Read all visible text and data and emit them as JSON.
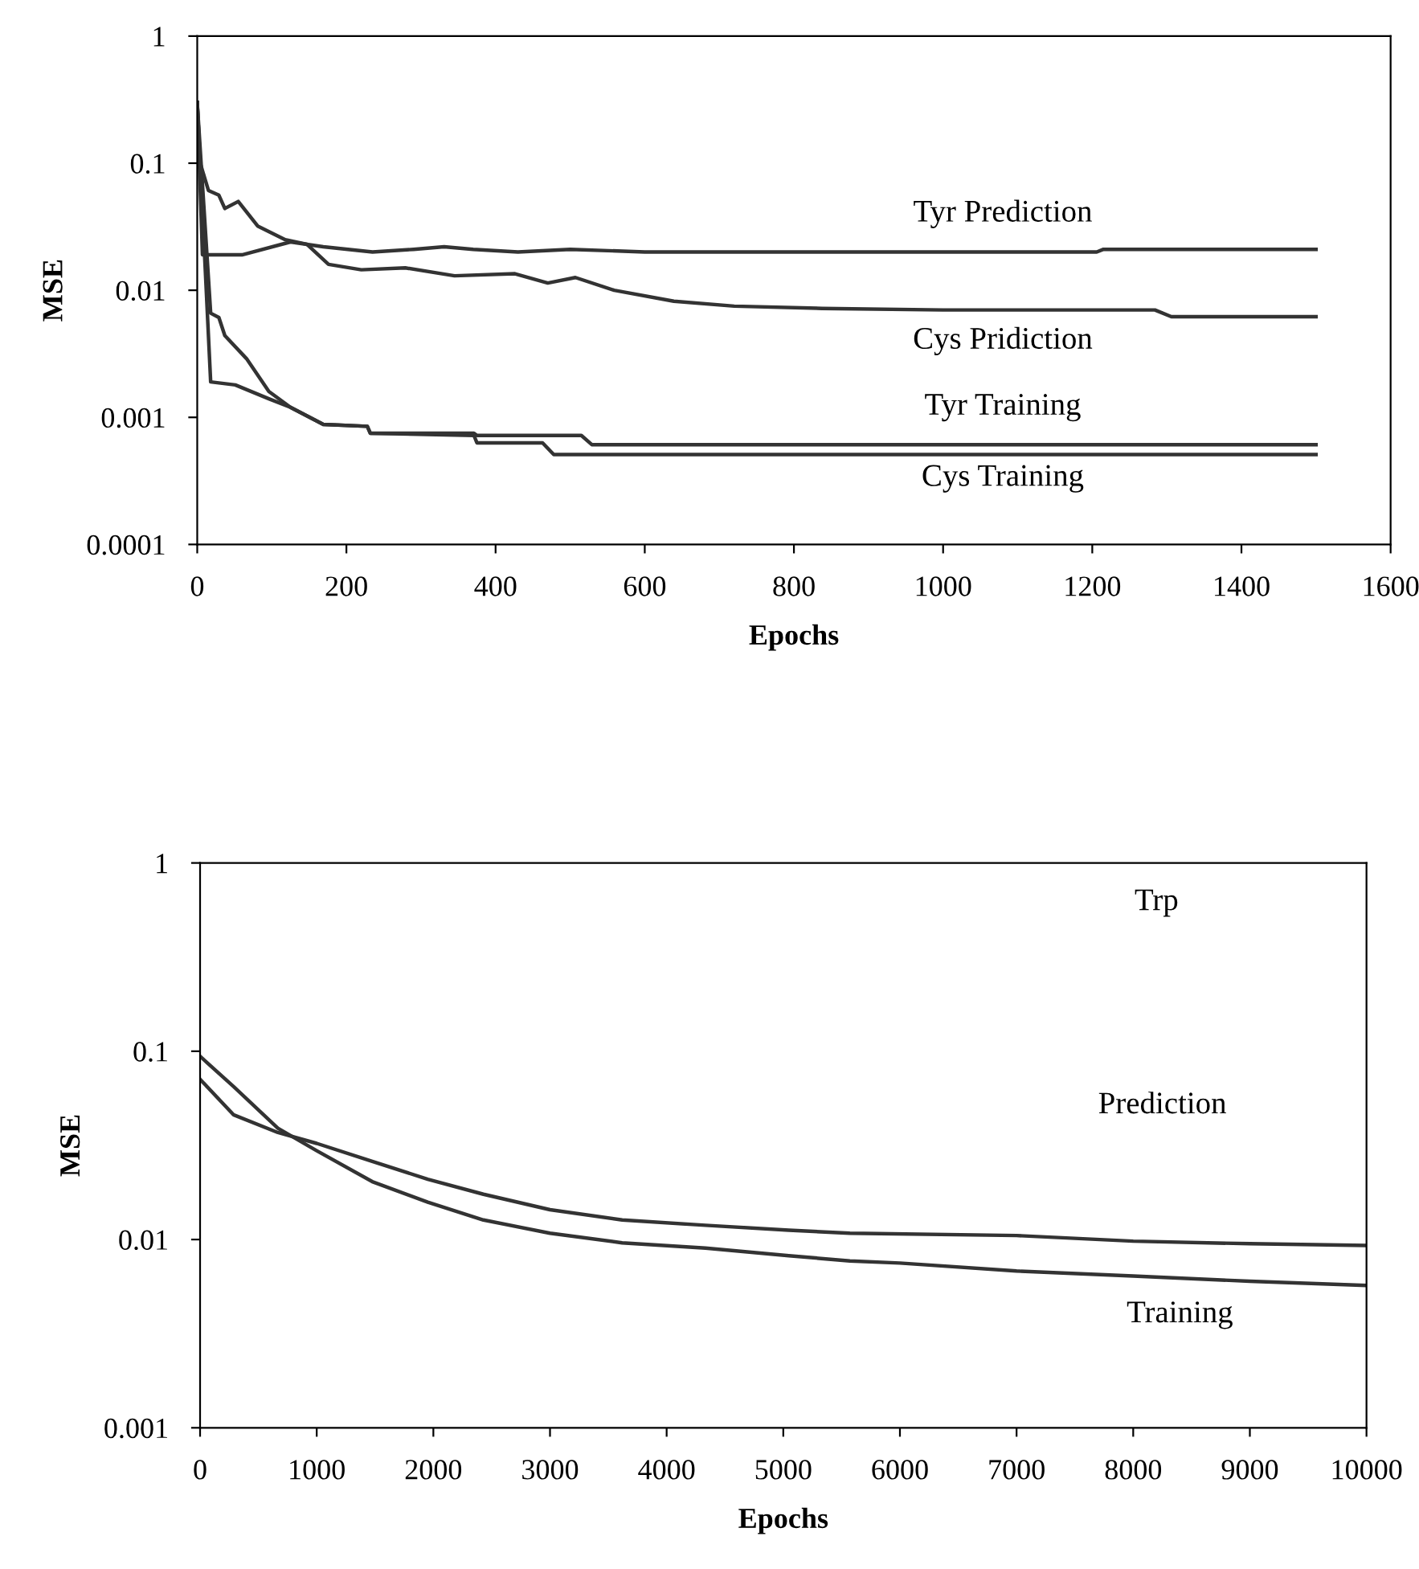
{
  "chart_data": [
    {
      "type": "line",
      "xlabel": "Epochs",
      "ylabel": "MSE",
      "log": "y",
      "xlim": [
        0,
        1600
      ],
      "xticks": [
        0,
        200,
        400,
        600,
        800,
        1000,
        1200,
        1400,
        1600
      ],
      "ylim": [
        0.0001,
        1
      ],
      "yticks": [
        0.0001,
        0.001,
        0.01,
        0.1,
        1
      ],
      "grid": false,
      "marker": "none",
      "line_style": "solid",
      "series": [
        {
          "color": "#333333",
          "x": [
            0,
            7,
            60,
            125,
            169,
            235,
            290,
            331,
            370,
            430,
            500,
            600,
            800,
            1000,
            1206,
            1215,
            1500
          ],
          "values": [
            0.3,
            0.019,
            0.019,
            0.024,
            0.022,
            0.02,
            0.021,
            0.022,
            0.021,
            0.02,
            0.021,
            0.02,
            0.02,
            0.02,
            0.02,
            0.021,
            0.021
          ]
        },
        {
          "color": "#333333",
          "x": [
            0,
            4,
            15,
            29,
            37,
            55,
            81,
            118,
            147,
            176,
            220,
            279,
            345,
            426,
            470,
            507,
            559,
            639,
            720,
            838,
            1000,
            1284,
            1306,
            1500
          ],
          "values": [
            0.3,
            0.1,
            0.061,
            0.056,
            0.044,
            0.05,
            0.032,
            0.025,
            0.023,
            0.016,
            0.0145,
            0.015,
            0.013,
            0.0135,
            0.0114,
            0.0126,
            0.01,
            0.0082,
            0.0075,
            0.0072,
            0.007,
            0.007,
            0.0062,
            0.0062
          ]
        },
        {
          "color": "#333333",
          "x": [
            0,
            18,
            29,
            37,
            66,
            96,
            125,
            169,
            228,
            232,
            371,
            375,
            515,
            529,
            1500
          ],
          "values": [
            0.3,
            0.0066,
            0.0061,
            0.0044,
            0.0029,
            0.0016,
            0.0012,
            0.00088,
            0.00085,
            0.00075,
            0.00075,
            0.00072,
            0.00072,
            0.00061,
            0.00061
          ]
        },
        {
          "color": "#333333",
          "x": [
            0,
            18,
            51,
            96,
            125,
            169,
            228,
            232,
            371,
            375,
            463,
            478,
            1500
          ],
          "values": [
            0.3,
            0.0019,
            0.0018,
            0.0014,
            0.0012,
            0.00088,
            0.00085,
            0.00075,
            0.00072,
            0.00063,
            0.00063,
            0.00051,
            0.00051
          ]
        }
      ],
      "annotations": [
        "Tyr Prediction",
        "Cys Pridiction",
        "Tyr Training",
        "Cys Training"
      ]
    },
    {
      "type": "line",
      "xlabel": "Epochs",
      "ylabel": "MSE",
      "log": "y",
      "xlim": [
        0,
        10000
      ],
      "xticks": [
        0,
        1000,
        2000,
        3000,
        4000,
        5000,
        6000,
        7000,
        8000,
        9000,
        10000
      ],
      "ylim": [
        0.001,
        1
      ],
      "yticks": [
        0.001,
        0.01,
        0.1,
        1
      ],
      "grid": false,
      "marker": "none",
      "line_style": "solid",
      "series": [
        {
          "color": "#333333",
          "x": [
            0,
            286,
            667,
            1000,
            1476,
            1952,
            2429,
            3000,
            3619,
            4333,
            5048,
            5571,
            6000,
            7000,
            8000,
            9000,
            10000
          ],
          "values": [
            0.094,
            0.065,
            0.039,
            0.0296,
            0.0203,
            0.0158,
            0.0127,
            0.0108,
            0.0096,
            0.009,
            0.0082,
            0.0077,
            0.0075,
            0.0068,
            0.0064,
            0.006,
            0.0057
          ]
        },
        {
          "color": "#333333",
          "x": [
            0,
            286,
            667,
            1000,
            1476,
            1952,
            2429,
            3000,
            3619,
            4333,
            5048,
            5571,
            7000,
            8000,
            9000,
            10000
          ],
          "values": [
            0.071,
            0.046,
            0.037,
            0.0324,
            0.026,
            0.0209,
            0.0174,
            0.0144,
            0.0127,
            0.0119,
            0.0112,
            0.0108,
            0.0105,
            0.0098,
            0.0095,
            0.0093
          ]
        }
      ],
      "annotations": [
        "Trp",
        "Prediction",
        "Training"
      ]
    }
  ]
}
